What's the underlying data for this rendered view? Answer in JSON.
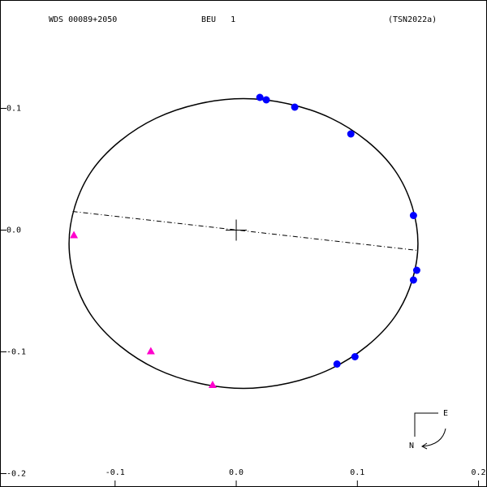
{
  "chart_data": {
    "type": "orbit",
    "header": [
      "WDS 00089+2050",
      "BEU   1",
      "(TSN2022a)"
    ],
    "compass": [
      "E",
      "N"
    ],
    "xlim": [
      -0.195,
      0.207
    ],
    "ylim": [
      -0.211,
      0.189
    ],
    "xticks": [
      -0.1,
      {
        "value": 0,
        "label": "0.0"
      },
      0.1,
      0.2
    ],
    "yticks": [
      -0.2,
      -0.1,
      {
        "value": 0,
        "label": "0.0"
      },
      0.1
    ],
    "orbit": {
      "color": "#000000",
      "x": [
        0.15,
        0.131,
        0.078,
        0.006,
        -0.066,
        -0.119,
        -0.138,
        -0.119,
        -0.066,
        0.006,
        0.078,
        0.131
      ],
      "y": [
        -0.011,
        0.049,
        0.092,
        0.108,
        0.092,
        0.049,
        -0.011,
        -0.071,
        -0.114,
        -0.13,
        -0.114,
        -0.071
      ]
    },
    "node_line": {
      "x": [
        -0.135,
        0.15
      ],
      "y": [
        0.0153,
        -0.0167
      ]
    },
    "series": [
      {
        "marker": "circle",
        "color": "#0000ff",
        "x": [
          0.0195,
          0.0248,
          0.0483,
          0.0946,
          0.1463,
          0.149,
          0.1463,
          0.0832,
          0.098
        ],
        "values": [
          0.109,
          0.107,
          0.101,
          0.079,
          0.012,
          -0.033,
          -0.041,
          -0.11,
          -0.104
        ]
      },
      {
        "marker": "triangle",
        "color": "#ff00cc",
        "x": [
          -0.134,
          -0.0705,
          -0.0195
        ],
        "values": [
          -0.004,
          -0.0993,
          -0.127
        ]
      }
    ]
  }
}
